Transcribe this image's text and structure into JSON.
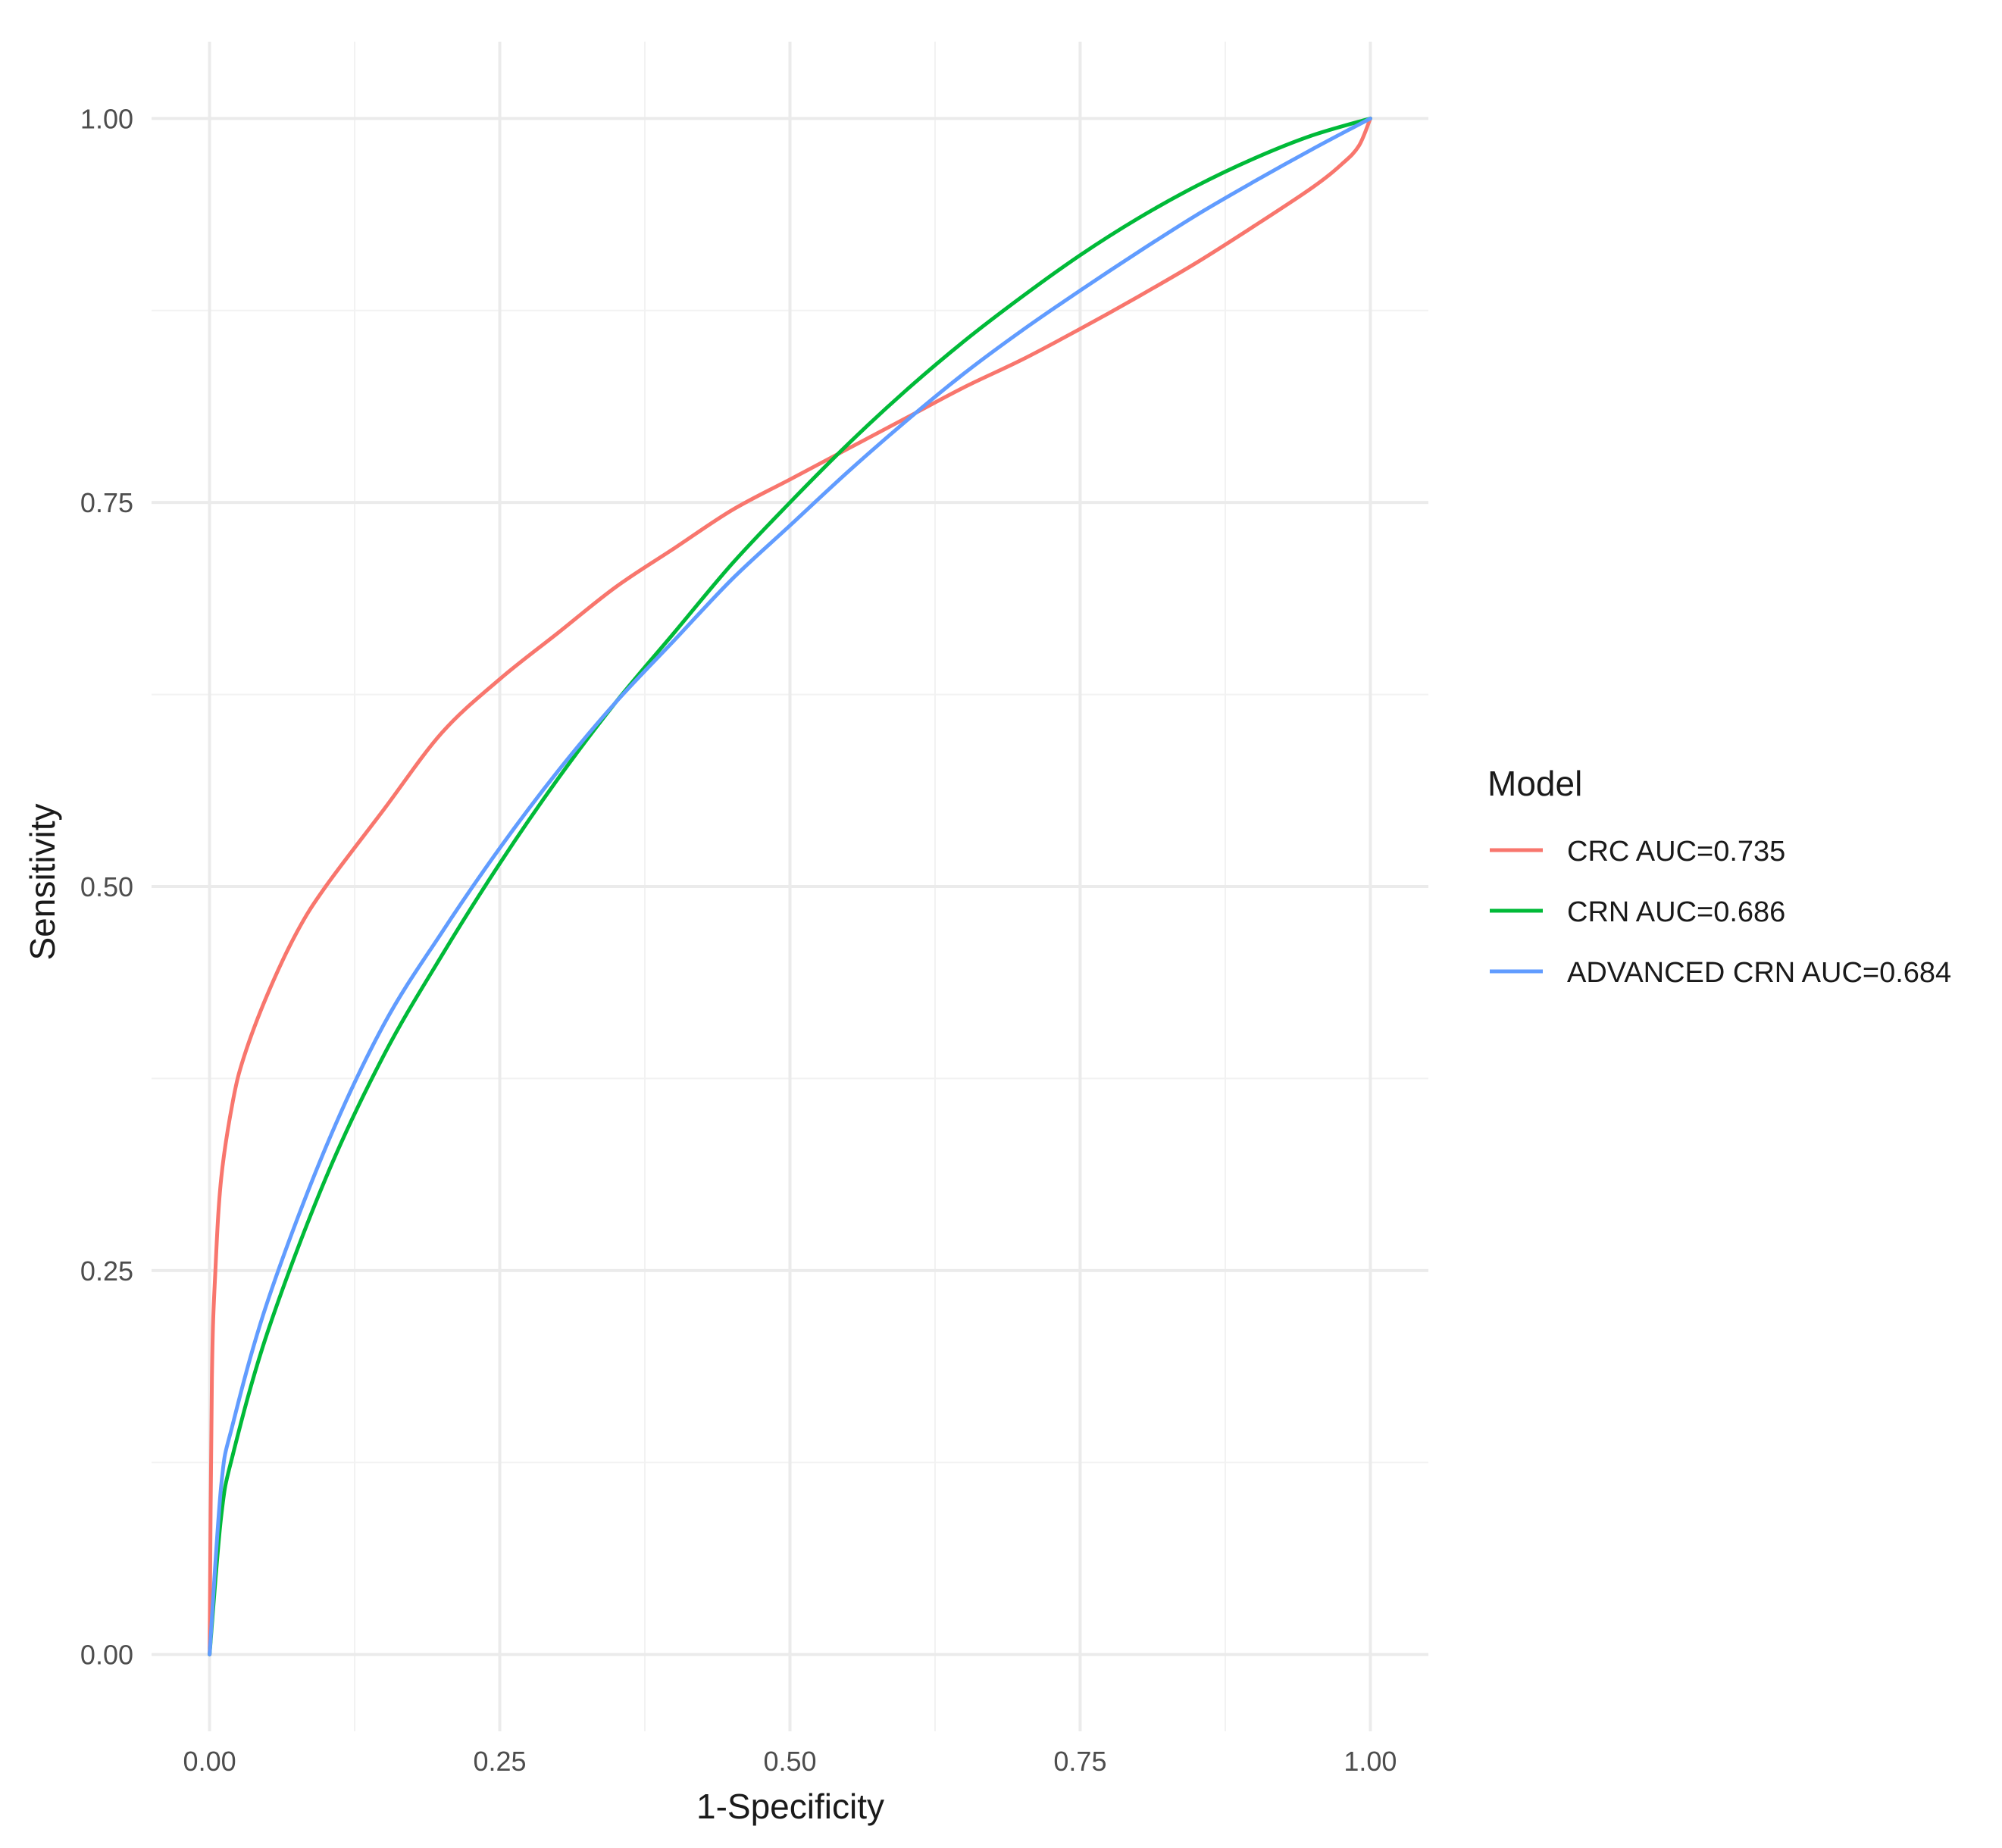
{
  "chart_data": {
    "type": "line",
    "title": "",
    "xlabel": "1-Specificity",
    "ylabel": "Sensitivity",
    "xlim": [
      -0.05,
      1.05
    ],
    "ylim": [
      -0.05,
      1.05
    ],
    "x_ticks": [
      "0.00",
      "0.25",
      "0.50",
      "0.75",
      "1.00"
    ],
    "y_ticks": [
      "0.00",
      "0.25",
      "0.50",
      "0.75",
      "1.00"
    ],
    "grid": true,
    "legend": {
      "title": "Model",
      "position": "right"
    },
    "series": [
      {
        "name": "CRC AUC=0.735",
        "color": "#F8766D",
        "x": [
          0,
          0.002,
          0.005,
          0.01,
          0.02,
          0.03,
          0.05,
          0.075,
          0.1,
          0.15,
          0.2,
          0.25,
          0.3,
          0.35,
          0.4,
          0.45,
          0.5,
          0.55,
          0.6,
          0.65,
          0.7,
          0.75,
          0.8,
          0.85,
          0.9,
          0.95,
          0.975,
          0.99,
          1.0
        ],
        "y": [
          0,
          0.18,
          0.25,
          0.31,
          0.36,
          0.39,
          0.43,
          0.47,
          0.5,
          0.55,
          0.6,
          0.635,
          0.665,
          0.695,
          0.72,
          0.745,
          0.765,
          0.785,
          0.805,
          0.825,
          0.843,
          0.863,
          0.884,
          0.906,
          0.93,
          0.955,
          0.97,
          0.982,
          1.0
        ]
      },
      {
        "name": "CRN AUC=0.686",
        "color": "#00BA38",
        "x": [
          0,
          0.01,
          0.02,
          0.05,
          0.1,
          0.15,
          0.2,
          0.25,
          0.3,
          0.35,
          0.4,
          0.45,
          0.5,
          0.55,
          0.6,
          0.65,
          0.7,
          0.75,
          0.8,
          0.85,
          0.9,
          0.95,
          1.0
        ],
        "y": [
          0,
          0.09,
          0.13,
          0.21,
          0.31,
          0.39,
          0.455,
          0.515,
          0.57,
          0.62,
          0.665,
          0.71,
          0.75,
          0.788,
          0.823,
          0.855,
          0.884,
          0.911,
          0.935,
          0.956,
          0.974,
          0.989,
          1.0
        ]
      },
      {
        "name": "ADVANCED CRN AUC=0.684",
        "color": "#619CFF",
        "x": [
          0,
          0.01,
          0.02,
          0.05,
          0.1,
          0.15,
          0.2,
          0.25,
          0.3,
          0.35,
          0.4,
          0.45,
          0.5,
          0.55,
          0.6,
          0.65,
          0.7,
          0.75,
          0.8,
          0.85,
          0.9,
          0.95,
          1.0
        ],
        "y": [
          0,
          0.11,
          0.15,
          0.23,
          0.33,
          0.41,
          0.47,
          0.525,
          0.575,
          0.62,
          0.66,
          0.7,
          0.735,
          0.77,
          0.803,
          0.834,
          0.862,
          0.888,
          0.913,
          0.937,
          0.959,
          0.98,
          1.0
        ]
      }
    ]
  }
}
